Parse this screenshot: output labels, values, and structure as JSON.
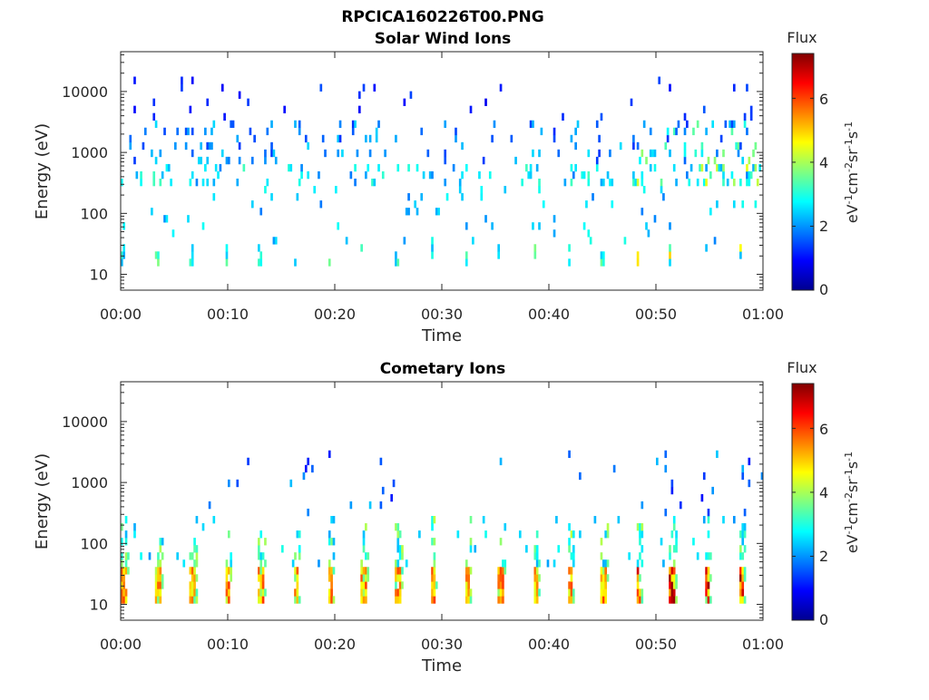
{
  "figure": {
    "title": "RPCICA160226T00.PNG"
  },
  "colors": {
    "axis": "#262626",
    "background": "#ffffff"
  },
  "chart_data": [
    {
      "type": "heatmap",
      "title": "Solar Wind Ions",
      "xlabel": "Time",
      "ylabel": "Energy (eV)",
      "y_scale": "log",
      "ylim": [
        5.5,
        45000
      ],
      "xlim": [
        "00:00",
        "01:00"
      ],
      "x_ticks": [
        "00:00",
        "00:10",
        "00:20",
        "00:30",
        "00:40",
        "00:50",
        "01:00"
      ],
      "y_ticks": [
        "10",
        "100",
        "1000",
        "10000"
      ],
      "colorbar": {
        "label": "Flux",
        "unit": "eV-1cm-2sr-1s-1",
        "range": [
          0,
          7.4
        ],
        "ticks": [
          "0",
          "2",
          "4",
          "6"
        ],
        "colormap": "jet"
      },
      "features": [
        {
          "energy_band": "12-30 eV",
          "typical_flux": 2.8,
          "peak_flux": 5.5,
          "pattern": "periodic bursts"
        },
        {
          "energy_band": "250-600 eV",
          "typical_flux": 2.3,
          "peak_flux": 4.5,
          "pattern": "scattered"
        },
        {
          "energy_band": "1000-3000 eV",
          "typical_flux": 2.2,
          "peak_flux": 4.0,
          "pattern": "scattered, denser after 00:48"
        },
        {
          "energy_band": "5000-20000 eV",
          "typical_flux": 1.0,
          "peak_flux": 1.5,
          "pattern": "sparse dots"
        }
      ]
    },
    {
      "type": "heatmap",
      "title": "Cometary Ions",
      "xlabel": "Time",
      "ylabel": "Energy (eV)",
      "y_scale": "log",
      "ylim": [
        5.5,
        45000
      ],
      "xlim": [
        "00:00",
        "01:00"
      ],
      "x_ticks": [
        "00:00",
        "00:10",
        "00:20",
        "00:30",
        "00:40",
        "00:50",
        "01:00"
      ],
      "y_ticks": [
        "10",
        "100",
        "1000",
        "10000"
      ],
      "colorbar": {
        "label": "Flux",
        "unit": "eV-1cm-2sr-1s-1",
        "range": [
          0,
          7.4
        ],
        "ticks": [
          "0",
          "2",
          "4",
          "6"
        ],
        "colormap": "jet"
      },
      "features": [
        {
          "energy_band": "12-35 eV",
          "typical_flux": 5.3,
          "peak_flux": 7.2,
          "pattern": "periodic bursts ~every 3.2 min"
        },
        {
          "energy_band": "35-250 eV",
          "typical_flux": 3.0,
          "peak_flux": 4.5,
          "pattern": "tails above each burst"
        },
        {
          "energy_band": "250-3500 eV",
          "typical_flux": 1.5,
          "peak_flux": 2.5,
          "pattern": "sparse"
        }
      ]
    }
  ]
}
